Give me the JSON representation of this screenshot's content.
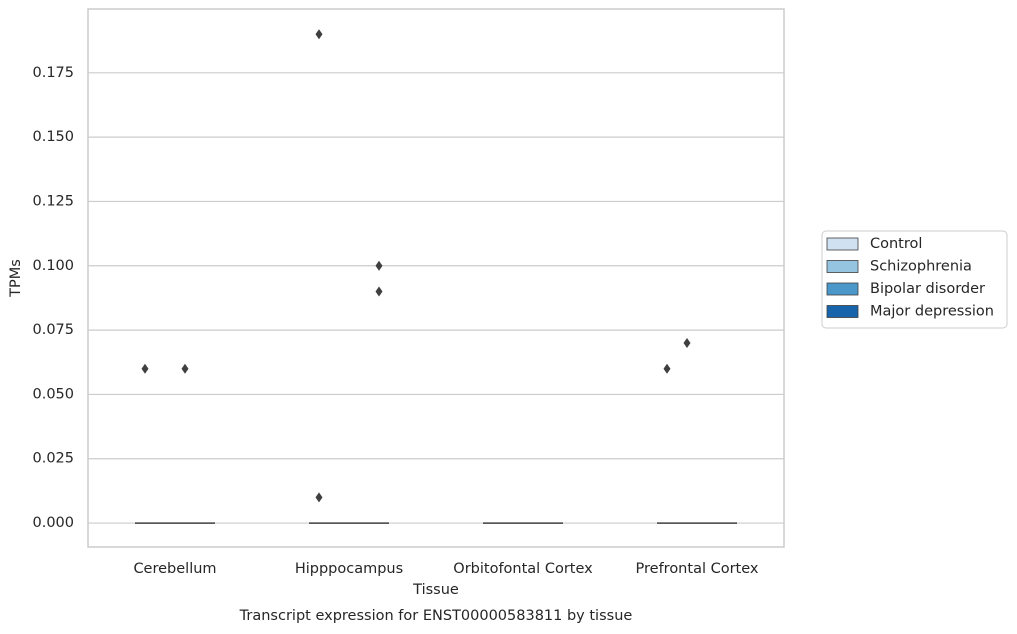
{
  "chart_data": {
    "type": "box",
    "title": "Transcript expression for ENST00000583811 by tissue",
    "x_label": "Tissue",
    "y_label": "TPMs",
    "categories": [
      "Cerebellum",
      "Hipppocampus",
      "Orbitofontal Cortex",
      "Prefrontal Cortex"
    ],
    "ylim": [
      -0.0093,
      0.1998
    ],
    "yticks": [
      {
        "value": 0,
        "label": "0.000"
      },
      {
        "value": 0.025,
        "label": "0.025"
      },
      {
        "value": 0.05,
        "label": "0.050"
      },
      {
        "value": 0.075,
        "label": "0.075"
      },
      {
        "value": 0.1,
        "label": "0.100"
      },
      {
        "value": 0.125,
        "label": "0.125"
      },
      {
        "value": 0.15,
        "label": "0.150"
      },
      {
        "value": 0.175,
        "label": "0.175"
      }
    ],
    "grid": true,
    "legend_position": "right",
    "series": [
      {
        "name": "Control",
        "color": "#d0e1f2",
        "q1": [
          0,
          0,
          0,
          0
        ],
        "median": [
          0,
          0,
          0,
          0
        ],
        "q3": [
          0,
          0,
          0,
          0
        ],
        "outliers": [
          [
            0.06
          ],
          [
            0.19,
            0.01
          ],
          [],
          [
            0.06
          ]
        ]
      },
      {
        "name": "Schizophrenia",
        "color": "#94c4df",
        "q1": [
          0,
          0,
          0,
          0
        ],
        "median": [
          0,
          0,
          0,
          0
        ],
        "q3": [
          0,
          0,
          0,
          0
        ],
        "outliers": [
          [],
          [],
          [],
          [
            0.07
          ]
        ]
      },
      {
        "name": "Bipolar disorder",
        "color": "#4a98c9",
        "q1": [
          0,
          0,
          0,
          0
        ],
        "median": [
          0,
          0,
          0,
          0
        ],
        "q3": [
          0,
          0,
          0,
          0
        ],
        "outliers": [
          [
            0.06
          ],
          [],
          [],
          []
        ]
      },
      {
        "name": "Major depression",
        "color": "#1764ab",
        "q1": [
          0,
          0,
          0,
          0
        ],
        "median": [
          0,
          0,
          0,
          0
        ],
        "q3": [
          0,
          0,
          0,
          0
        ],
        "outliers": [
          [],
          [
            0.1,
            0.09
          ],
          [],
          []
        ]
      }
    ]
  }
}
